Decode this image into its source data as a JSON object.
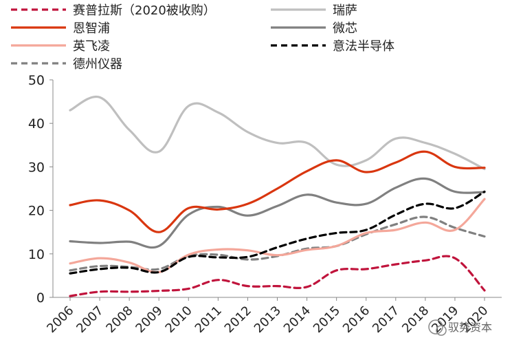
{
  "chart_data": {
    "type": "line",
    "x": [
      "2006",
      "2007",
      "2008",
      "2009",
      "2010",
      "2011",
      "2012",
      "2013",
      "2014",
      "2015",
      "2016",
      "2017",
      "2018",
      "2019",
      "2020"
    ],
    "ylim": [
      0,
      50
    ],
    "yticks": [
      0,
      10,
      20,
      30,
      40,
      50
    ],
    "legend_position": "top",
    "series": [
      {
        "name": "赛普拉斯（2020被收购）",
        "color": "#c0143c",
        "style": "dashed",
        "values": [
          0.3,
          1.3,
          1.3,
          1.5,
          2.0,
          4.0,
          2.6,
          2.6,
          2.4,
          6.2,
          6.5,
          7.6,
          8.5,
          9.0,
          1.6
        ]
      },
      {
        "name": "瑞萨",
        "color": "#bfbfbf",
        "style": "solid",
        "values": [
          43.0,
          46.0,
          38.5,
          33.5,
          44.0,
          42.5,
          38.0,
          35.5,
          35.5,
          30.5,
          31.5,
          36.5,
          35.5,
          33.0,
          29.5
        ]
      },
      {
        "name": "恩智浦",
        "color": "#d9360f",
        "style": "solid",
        "values": [
          21.2,
          22.3,
          20.0,
          15.0,
          20.5,
          20.2,
          21.5,
          25.0,
          29.0,
          31.5,
          28.8,
          31.0,
          33.5,
          30.0,
          29.8
        ]
      },
      {
        "name": "微芯",
        "color": "#808080",
        "style": "solid",
        "values": [
          12.9,
          12.5,
          12.8,
          11.8,
          19.0,
          20.8,
          18.8,
          21.0,
          23.6,
          21.8,
          21.5,
          25.2,
          27.3,
          24.3,
          24.2
        ]
      },
      {
        "name": "英飞凌",
        "color": "#f4a79a",
        "style": "solid",
        "values": [
          7.8,
          9.0,
          8.0,
          5.8,
          9.8,
          11.0,
          10.8,
          9.7,
          10.9,
          11.8,
          14.8,
          15.5,
          17.2,
          15.5,
          22.6
        ]
      },
      {
        "name": "意法半导体",
        "color": "#000000",
        "style": "dashed",
        "values": [
          5.5,
          6.5,
          6.8,
          5.8,
          9.3,
          9.2,
          9.3,
          11.5,
          13.5,
          14.8,
          15.5,
          19.0,
          21.5,
          20.5,
          24.3
        ]
      },
      {
        "name": "德州仪器",
        "color": "#808080",
        "style": "dashed",
        "values": [
          6.2,
          7.2,
          7.0,
          6.5,
          9.5,
          9.8,
          8.7,
          9.5,
          11.2,
          11.8,
          14.5,
          16.8,
          18.5,
          16.0,
          14.0
        ]
      }
    ]
  },
  "watermark": "驭势资本"
}
